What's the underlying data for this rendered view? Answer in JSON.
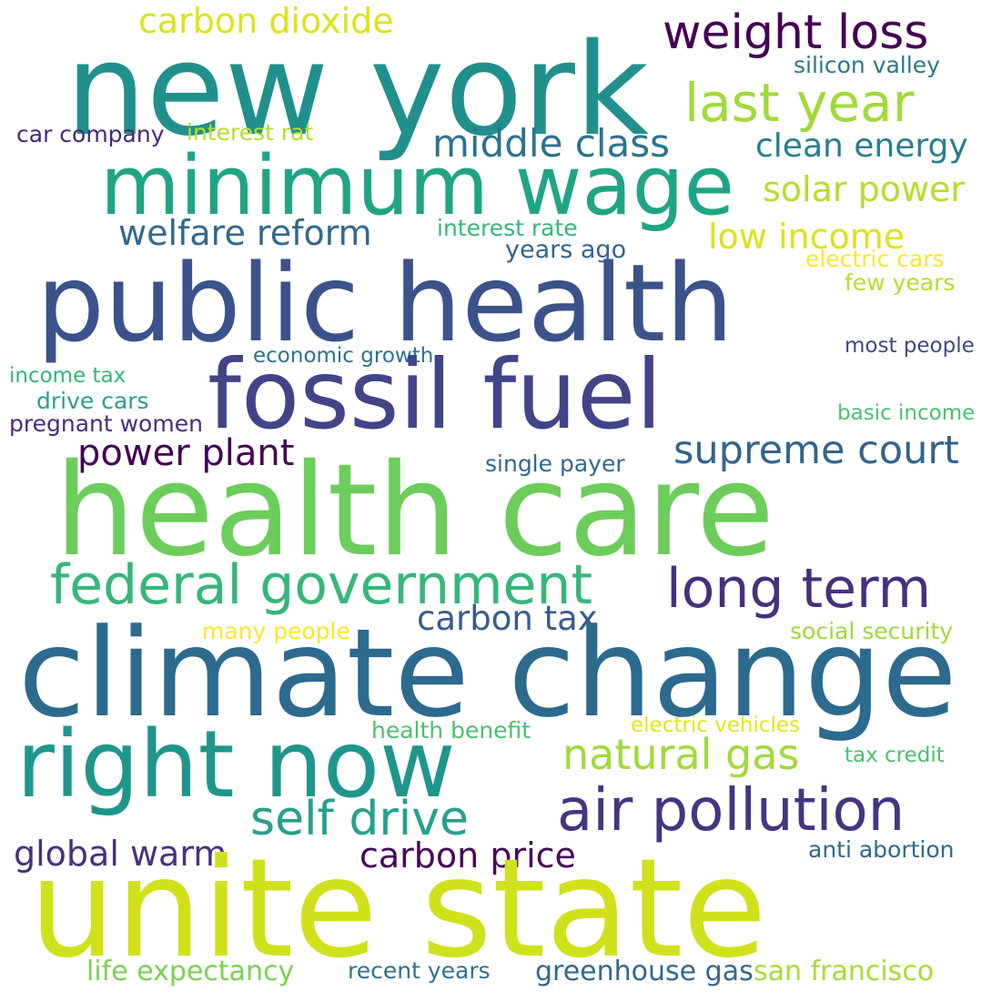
{
  "words": [
    {
      "text": "new york",
      "color": "#21908d"
    },
    {
      "text": "carbon dioxide",
      "color": "#dce319"
    },
    {
      "text": "weight loss",
      "color": "#440154"
    },
    {
      "text": "silicon valley",
      "color": "#2a788e"
    },
    {
      "text": "last year",
      "color": "#a0da39"
    },
    {
      "text": "car company",
      "color": "#482878"
    },
    {
      "text": "interest rat",
      "color": "#b5de2b"
    },
    {
      "text": "middle class",
      "color": "#2c728e"
    },
    {
      "text": "clean energy",
      "color": "#277f8e"
    },
    {
      "text": "minimum wage",
      "color": "#20a486"
    },
    {
      "text": "solar power",
      "color": "#b5de2b"
    },
    {
      "text": "welfare reform",
      "color": "#31688e"
    },
    {
      "text": "interest rate",
      "color": "#35b779"
    },
    {
      "text": "low income",
      "color": "#dce319"
    },
    {
      "text": "years ago",
      "color": "#33638d"
    },
    {
      "text": "electric cars",
      "color": "#fde725"
    },
    {
      "text": "few years",
      "color": "#b5de2b"
    },
    {
      "text": "public health",
      "color": "#3b528b"
    },
    {
      "text": "economic growth",
      "color": "#2c728e"
    },
    {
      "text": "most people",
      "color": "#3e4a89"
    },
    {
      "text": "income tax",
      "color": "#35b779"
    },
    {
      "text": "fossil fuel",
      "color": "#414487"
    },
    {
      "text": "drive cars",
      "color": "#2a9d8f"
    },
    {
      "text": "basic income",
      "color": "#4ac16d"
    },
    {
      "text": "pregnant women",
      "color": "#472d7b"
    },
    {
      "text": "power plant",
      "color": "#440154"
    },
    {
      "text": "supreme court",
      "color": "#33638d"
    },
    {
      "text": "single payer",
      "color": "#31688e"
    },
    {
      "text": "health care",
      "color": "#6ccd5a"
    },
    {
      "text": "federal government",
      "color": "#35b779"
    },
    {
      "text": "long term",
      "color": "#46307e"
    },
    {
      "text": "carbon tax",
      "color": "#365c8d"
    },
    {
      "text": "many people",
      "color": "#fde725"
    },
    {
      "text": "social security",
      "color": "#a0da39"
    },
    {
      "text": "climate change",
      "color": "#2c6a8e"
    },
    {
      "text": "right now",
      "color": "#1f968b"
    },
    {
      "text": "natural gas",
      "color": "#a0da39"
    },
    {
      "text": "health benefit",
      "color": "#4ac16d"
    },
    {
      "text": "electric vehicles",
      "color": "#e5e419"
    },
    {
      "text": "tax credit",
      "color": "#4ac16d"
    },
    {
      "text": "self drive",
      "color": "#25a18e"
    },
    {
      "text": "air pollution",
      "color": "#453581"
    },
    {
      "text": "global warm",
      "color": "#46327e"
    },
    {
      "text": "carbon price",
      "color": "#46085c"
    },
    {
      "text": "anti abortion",
      "color": "#30698e"
    },
    {
      "text": "unite state",
      "color": "#d0e11c"
    },
    {
      "text": "life expectancy",
      "color": "#7ad151"
    },
    {
      "text": "recent years",
      "color": "#2c728e"
    },
    {
      "text": "greenhouse gas",
      "color": "#31688e"
    },
    {
      "text": "san francisco",
      "color": "#a8db34"
    }
  ]
}
